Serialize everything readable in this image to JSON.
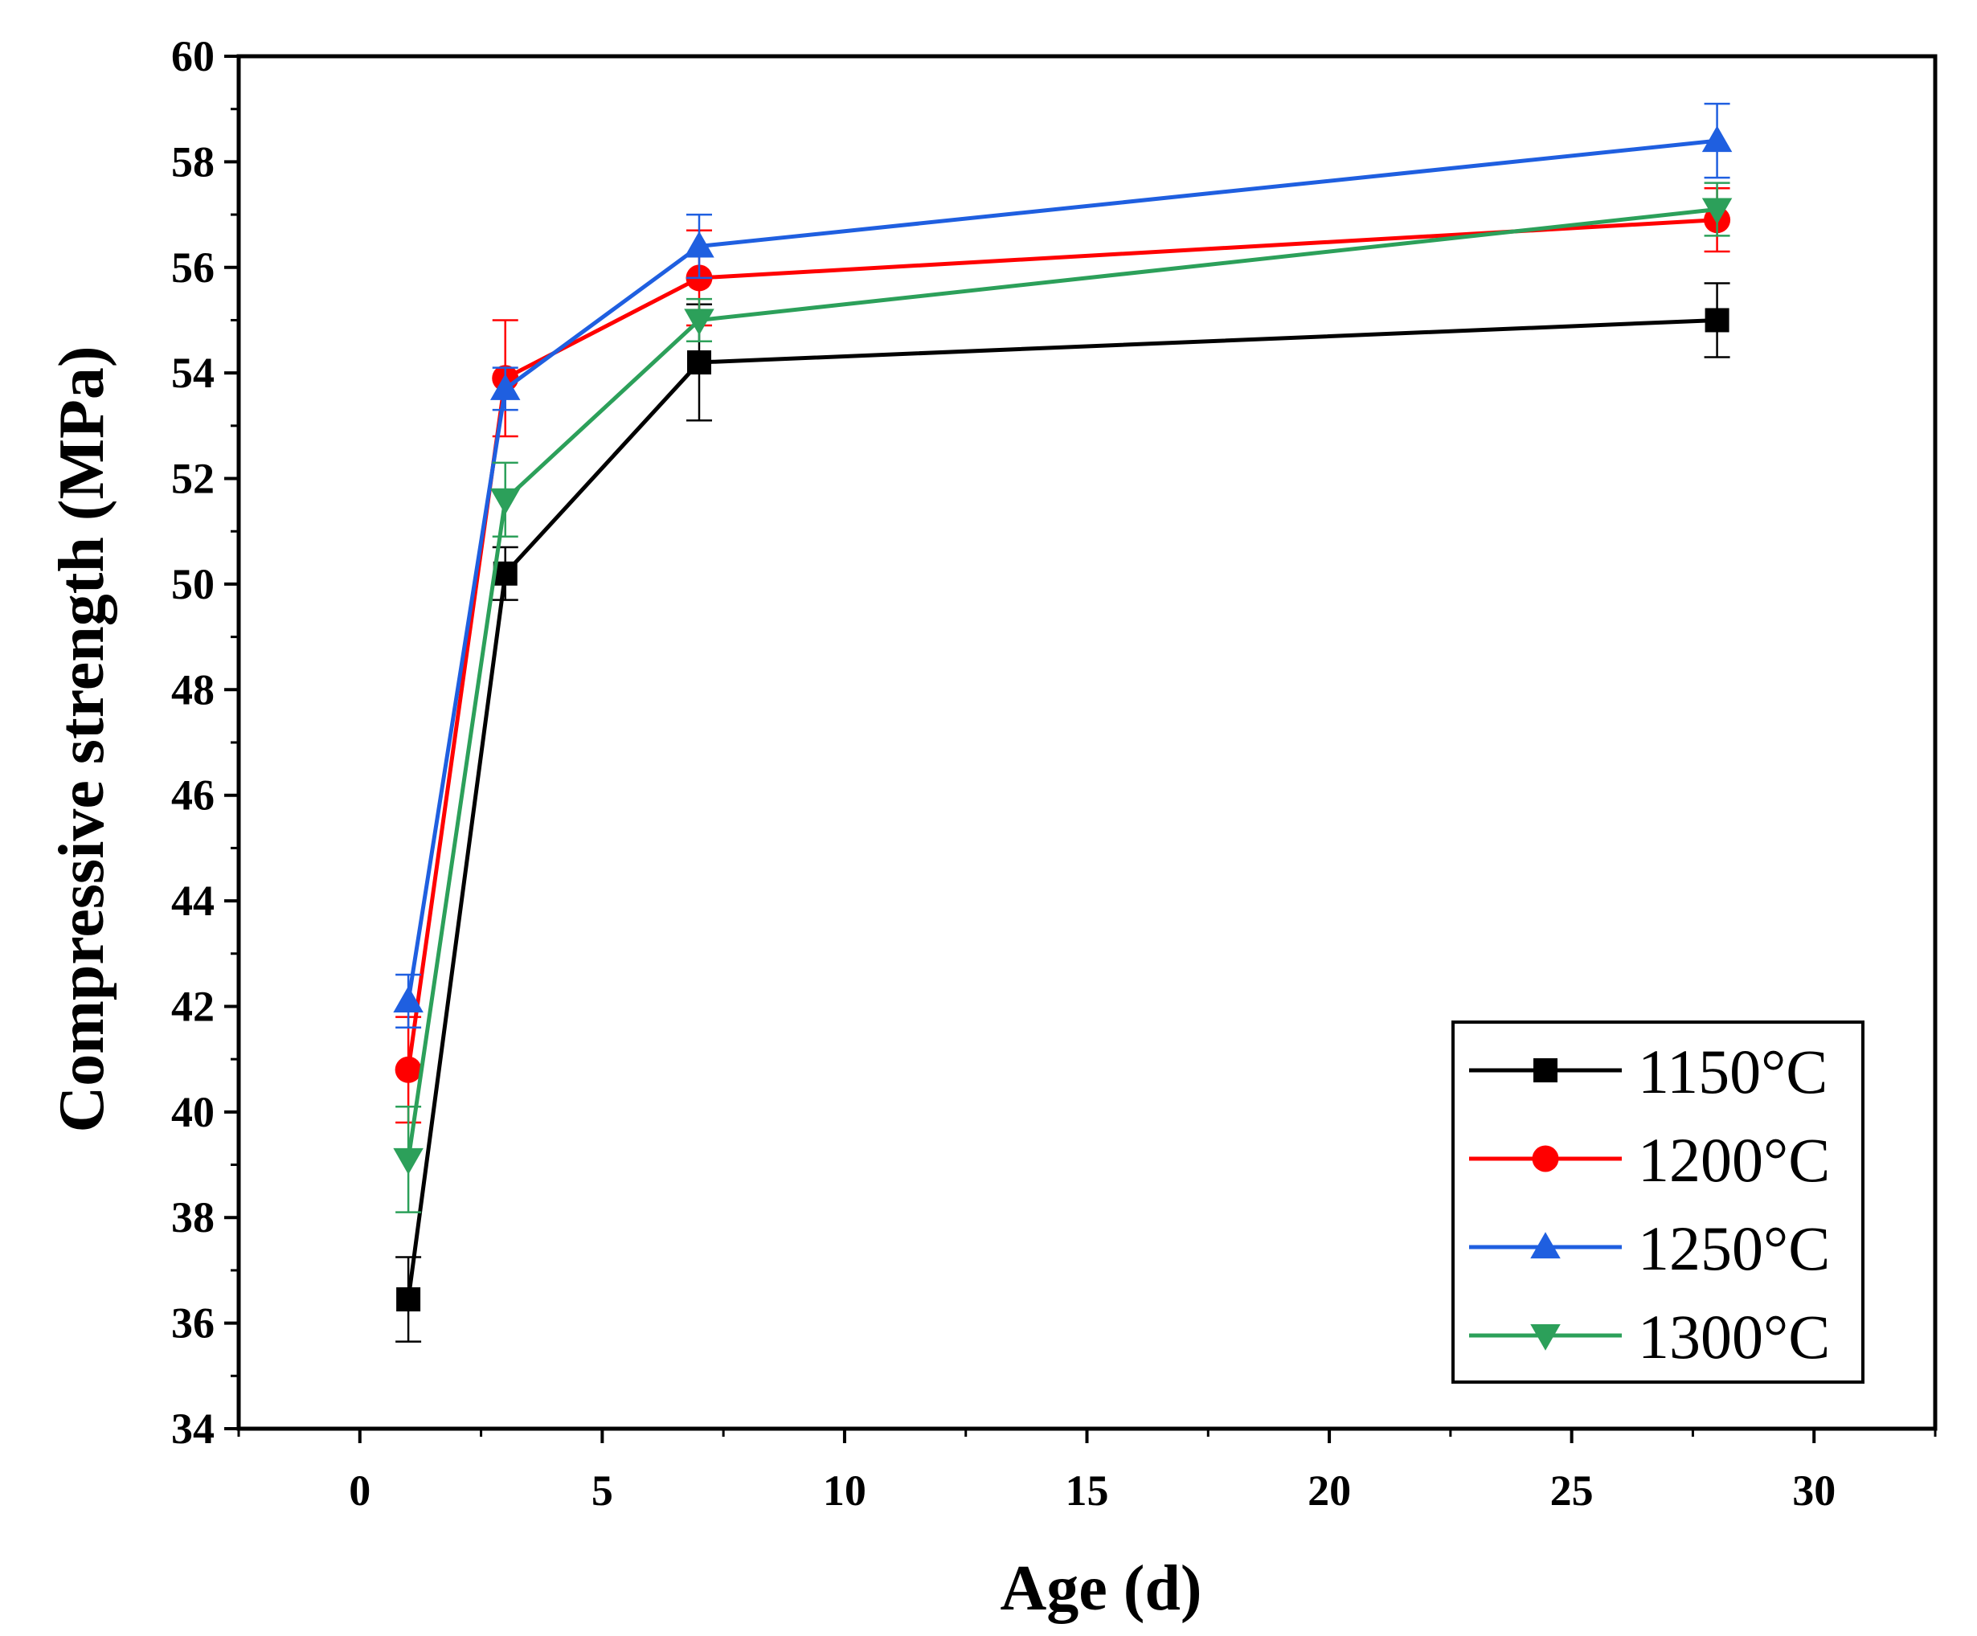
{
  "chart_data": {
    "type": "line",
    "title": "",
    "xlabel": "Age (d)",
    "ylabel": "Compressive strength (MPa)",
    "xlim": [
      -2.5,
      32.5
    ],
    "ylim": [
      34,
      60
    ],
    "xticks": [
      0,
      5,
      10,
      15,
      20,
      25,
      30
    ],
    "yticks": [
      34,
      36,
      38,
      40,
      42,
      44,
      46,
      48,
      50,
      52,
      54,
      56,
      58,
      60
    ],
    "x": [
      1,
      3,
      7,
      28
    ],
    "legend_position": "bottom-right",
    "series": [
      {
        "name": "1150°C",
        "color": "#000000",
        "marker": "square",
        "values": [
          36.45,
          50.2,
          54.2,
          55.0
        ],
        "errors": [
          0.8,
          0.5,
          1.1,
          0.7
        ]
      },
      {
        "name": "1200°C",
        "color": "#ff0000",
        "marker": "circle",
        "values": [
          40.8,
          53.9,
          55.8,
          56.9
        ],
        "errors": [
          1.0,
          1.1,
          0.9,
          0.6
        ]
      },
      {
        "name": "1250°C",
        "color": "#1f5fe0",
        "marker": "triangle-up",
        "values": [
          42.1,
          53.7,
          56.4,
          58.4
        ],
        "errors": [
          0.5,
          0.4,
          0.6,
          0.7
        ]
      },
      {
        "name": "1300°C",
        "color": "#2ca05a",
        "marker": "triangle-down",
        "values": [
          39.1,
          51.6,
          55.0,
          57.1
        ],
        "errors": [
          1.0,
          0.7,
          0.4,
          0.5
        ]
      }
    ]
  }
}
